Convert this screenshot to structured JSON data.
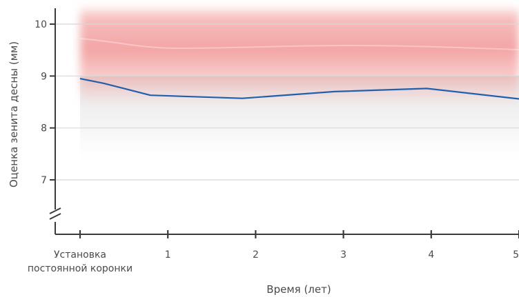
{
  "chart_data": {
    "type": "line",
    "xlabel": "Время (лет)",
    "ylabel": "Оценка зенита десны (мм)",
    "x_ticks": [
      {
        "x": 0,
        "label": "Установка",
        "label2": "постоянной коронки"
      },
      {
        "x": 1,
        "label": "1",
        "label2": ""
      },
      {
        "x": 2,
        "label": "2",
        "label2": ""
      },
      {
        "x": 3,
        "label": "3",
        "label2": ""
      },
      {
        "x": 4,
        "label": "4",
        "label2": ""
      },
      {
        "x": 5,
        "label": "5",
        "label2": ""
      }
    ],
    "y_ticks": [
      {
        "y": 7,
        "label": "7"
      },
      {
        "y": 8,
        "label": "8"
      },
      {
        "y": 9,
        "label": "9"
      },
      {
        "y": 10,
        "label": "10"
      }
    ],
    "xlim": [
      0,
      5
    ],
    "ylim": [
      6.2,
      10.3
    ],
    "axis_break": true,
    "grid": "horizontal",
    "series": [
      {
        "color": "#1f5fae",
        "points": [
          {
            "x": 0,
            "y": 8.95
          },
          {
            "x": 0.27,
            "y": 8.86
          },
          {
            "x": 0.8,
            "y": 8.63
          },
          {
            "x": 1.85,
            "y": 8.57
          },
          {
            "x": 2.9,
            "y": 8.7
          },
          {
            "x": 3.95,
            "y": 8.76
          },
          {
            "x": 5,
            "y": 8.56
          }
        ]
      }
    ],
    "colors": {
      "band": "#f08a8a",
      "grid": "#d8d8d8",
      "axis": "#3a3a3a"
    }
  }
}
